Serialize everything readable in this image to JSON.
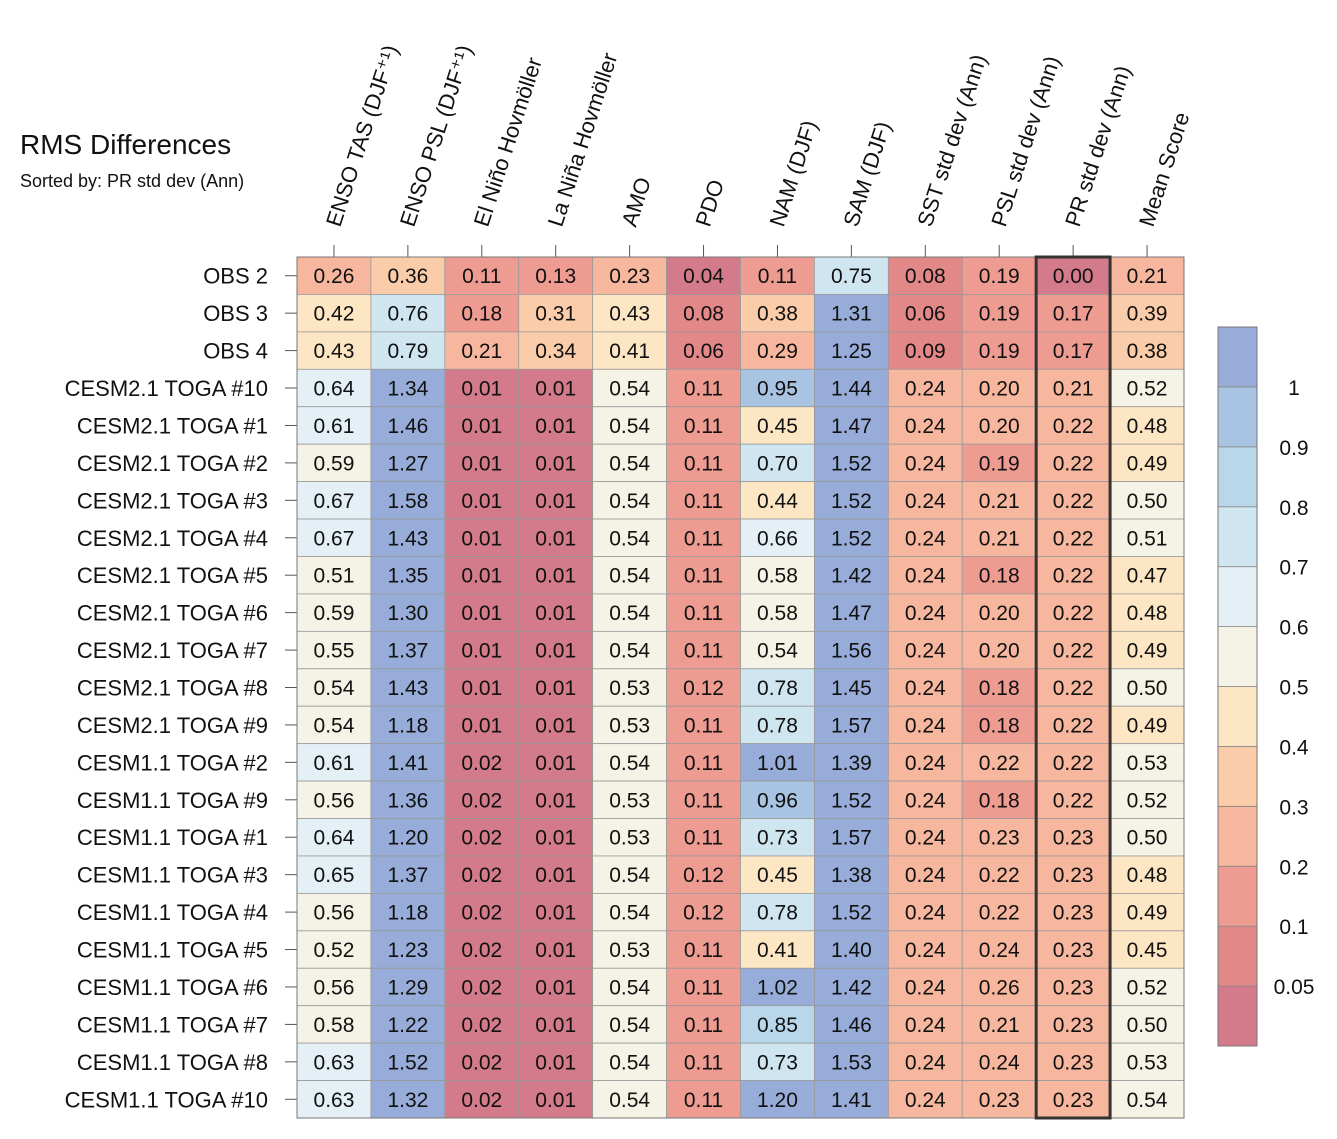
{
  "chart_data": {
    "type": "heatmap",
    "title": "RMS Differences",
    "subtitle": "Sorted by: PR std dev (Ann)",
    "columns": [
      "ENSO TAS (DJF⁺¹)",
      "ENSO PSL (DJF⁺¹)",
      "El Niño Hovmöller",
      "La Niña Hovmöller",
      "AMO",
      "PDO",
      "NAM (DJF)",
      "SAM (DJF)",
      "SST std dev (Ann)",
      "PSL std dev (Ann)",
      "PR std dev (Ann)",
      "Mean Score"
    ],
    "sorted_column": "PR std dev (Ann)",
    "rows": [
      "OBS 2",
      "OBS 3",
      "OBS 4",
      "CESM2.1 TOGA #10",
      "CESM2.1 TOGA #1",
      "CESM2.1 TOGA #2",
      "CESM2.1 TOGA #3",
      "CESM2.1 TOGA #4",
      "CESM2.1 TOGA #5",
      "CESM2.1 TOGA #6",
      "CESM2.1 TOGA #7",
      "CESM2.1 TOGA #8",
      "CESM2.1 TOGA #9",
      "CESM1.1 TOGA #2",
      "CESM1.1 TOGA #9",
      "CESM1.1 TOGA #1",
      "CESM1.1 TOGA #3",
      "CESM1.1 TOGA #4",
      "CESM1.1 TOGA #5",
      "CESM1.1 TOGA #6",
      "CESM1.1 TOGA #7",
      "CESM1.1 TOGA #8",
      "CESM1.1 TOGA #10"
    ],
    "values": [
      [
        "0.26",
        "0.36",
        "0.11",
        "0.13",
        "0.23",
        "0.04",
        "0.11",
        "0.75",
        "0.08",
        "0.19",
        "0.00",
        "0.21"
      ],
      [
        "0.42",
        "0.76",
        "0.18",
        "0.31",
        "0.43",
        "0.08",
        "0.38",
        "1.31",
        "0.06",
        "0.19",
        "0.17",
        "0.39"
      ],
      [
        "0.43",
        "0.79",
        "0.21",
        "0.34",
        "0.41",
        "0.06",
        "0.29",
        "1.25",
        "0.09",
        "0.19",
        "0.17",
        "0.38"
      ],
      [
        "0.64",
        "1.34",
        "0.01",
        "0.01",
        "0.54",
        "0.11",
        "0.95",
        "1.44",
        "0.24",
        "0.20",
        "0.21",
        "0.52"
      ],
      [
        "0.61",
        "1.46",
        "0.01",
        "0.01",
        "0.54",
        "0.11",
        "0.45",
        "1.47",
        "0.24",
        "0.20",
        "0.22",
        "0.48"
      ],
      [
        "0.59",
        "1.27",
        "0.01",
        "0.01",
        "0.54",
        "0.11",
        "0.70",
        "1.52",
        "0.24",
        "0.19",
        "0.22",
        "0.49"
      ],
      [
        "0.67",
        "1.58",
        "0.01",
        "0.01",
        "0.54",
        "0.11",
        "0.44",
        "1.52",
        "0.24",
        "0.21",
        "0.22",
        "0.50"
      ],
      [
        "0.67",
        "1.43",
        "0.01",
        "0.01",
        "0.54",
        "0.11",
        "0.66",
        "1.52",
        "0.24",
        "0.21",
        "0.22",
        "0.51"
      ],
      [
        "0.51",
        "1.35",
        "0.01",
        "0.01",
        "0.54",
        "0.11",
        "0.58",
        "1.42",
        "0.24",
        "0.18",
        "0.22",
        "0.47"
      ],
      [
        "0.59",
        "1.30",
        "0.01",
        "0.01",
        "0.54",
        "0.11",
        "0.58",
        "1.47",
        "0.24",
        "0.20",
        "0.22",
        "0.48"
      ],
      [
        "0.55",
        "1.37",
        "0.01",
        "0.01",
        "0.54",
        "0.11",
        "0.54",
        "1.56",
        "0.24",
        "0.20",
        "0.22",
        "0.49"
      ],
      [
        "0.54",
        "1.43",
        "0.01",
        "0.01",
        "0.53",
        "0.12",
        "0.78",
        "1.45",
        "0.24",
        "0.18",
        "0.22",
        "0.50"
      ],
      [
        "0.54",
        "1.18",
        "0.01",
        "0.01",
        "0.53",
        "0.11",
        "0.78",
        "1.57",
        "0.24",
        "0.18",
        "0.22",
        "0.49"
      ],
      [
        "0.61",
        "1.41",
        "0.02",
        "0.01",
        "0.54",
        "0.11",
        "1.01",
        "1.39",
        "0.24",
        "0.22",
        "0.22",
        "0.53"
      ],
      [
        "0.56",
        "1.36",
        "0.02",
        "0.01",
        "0.53",
        "0.11",
        "0.96",
        "1.52",
        "0.24",
        "0.18",
        "0.22",
        "0.52"
      ],
      [
        "0.64",
        "1.20",
        "0.02",
        "0.01",
        "0.53",
        "0.11",
        "0.73",
        "1.57",
        "0.24",
        "0.23",
        "0.23",
        "0.50"
      ],
      [
        "0.65",
        "1.37",
        "0.02",
        "0.01",
        "0.54",
        "0.12",
        "0.45",
        "1.38",
        "0.24",
        "0.22",
        "0.23",
        "0.48"
      ],
      [
        "0.56",
        "1.18",
        "0.02",
        "0.01",
        "0.54",
        "0.12",
        "0.78",
        "1.52",
        "0.24",
        "0.22",
        "0.23",
        "0.49"
      ],
      [
        "0.52",
        "1.23",
        "0.02",
        "0.01",
        "0.53",
        "0.11",
        "0.41",
        "1.40",
        "0.24",
        "0.24",
        "0.23",
        "0.45"
      ],
      [
        "0.56",
        "1.29",
        "0.02",
        "0.01",
        "0.54",
        "0.11",
        "1.02",
        "1.42",
        "0.24",
        "0.26",
        "0.23",
        "0.52"
      ],
      [
        "0.58",
        "1.22",
        "0.02",
        "0.01",
        "0.54",
        "0.11",
        "0.85",
        "1.46",
        "0.24",
        "0.21",
        "0.23",
        "0.50"
      ],
      [
        "0.63",
        "1.52",
        "0.02",
        "0.01",
        "0.54",
        "0.11",
        "0.73",
        "1.53",
        "0.24",
        "0.24",
        "0.23",
        "0.53"
      ],
      [
        "0.63",
        "1.32",
        "0.02",
        "0.01",
        "0.54",
        "0.11",
        "1.20",
        "1.41",
        "0.24",
        "0.23",
        "0.23",
        "0.54"
      ]
    ],
    "colorbar": {
      "levels": [
        "0.05",
        "0.1",
        "0.2",
        "0.3",
        "0.4",
        "0.5",
        "0.6",
        "0.7",
        "0.8",
        "0.9",
        "1"
      ],
      "colors": [
        "#d37a8b",
        "#e38888",
        "#ee9b92",
        "#f7b69e",
        "#fbcca9",
        "#fde6c3",
        "#f4f3e6",
        "#e4f0f5",
        "#cfe5ef",
        "#b8d7ea",
        "#a8c4e2",
        "#97acd8"
      ]
    },
    "legend_position": "right"
  }
}
